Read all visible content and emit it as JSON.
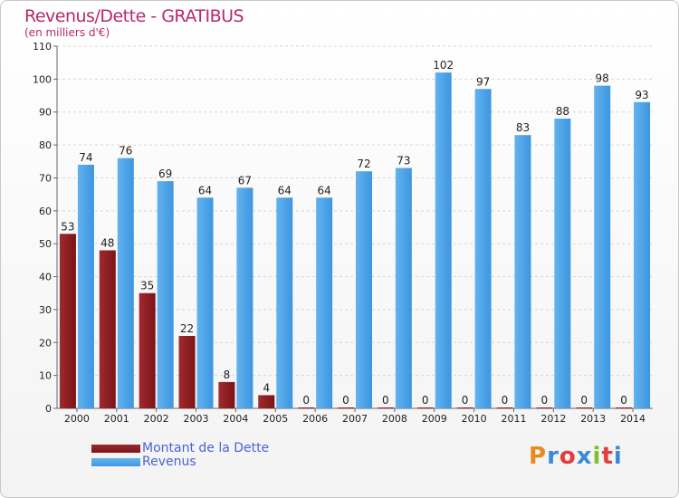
{
  "header": {
    "title": "Revenus/Dette - GRATIBUS",
    "subtitle": "(en milliers d'€)"
  },
  "legend": {
    "items": [
      {
        "label": "Montant de la Dette",
        "color": "#7b1418"
      },
      {
        "label": "Revenus",
        "color": "#3d96e0"
      }
    ]
  },
  "brand": {
    "text": "Proxiti",
    "colors": [
      "#e88b1e",
      "#3a8ad8",
      "#e23c3c",
      "#3a8ad8",
      "#7cc22a",
      "#e23c3c",
      "#3a8ad8"
    ]
  },
  "chart_data": {
    "type": "bar",
    "title": "Revenus/Dette - GRATIBUS",
    "subtitle": "(en milliers d'€)",
    "categories": [
      "2000",
      "2001",
      "2002",
      "2003",
      "2004",
      "2005",
      "2006",
      "2007",
      "2008",
      "2009",
      "2010",
      "2011",
      "2012",
      "2013",
      "2014"
    ],
    "series": [
      {
        "name": "Montant de la Dette",
        "color": "#7b1418",
        "values": [
          53,
          48,
          35,
          22,
          8,
          4,
          0,
          0,
          0,
          0,
          0,
          0,
          0,
          0,
          0
        ]
      },
      {
        "name": "Revenus",
        "color": "#3d96e0",
        "values": [
          74,
          76,
          69,
          64,
          67,
          64,
          64,
          72,
          73,
          102,
          97,
          83,
          88,
          98,
          93
        ]
      }
    ],
    "ylim": [
      0,
      110
    ],
    "yticks": [
      0,
      10,
      20,
      30,
      40,
      50,
      60,
      70,
      80,
      90,
      100,
      110
    ],
    "grid": true,
    "legend_position": "bottom-left"
  }
}
